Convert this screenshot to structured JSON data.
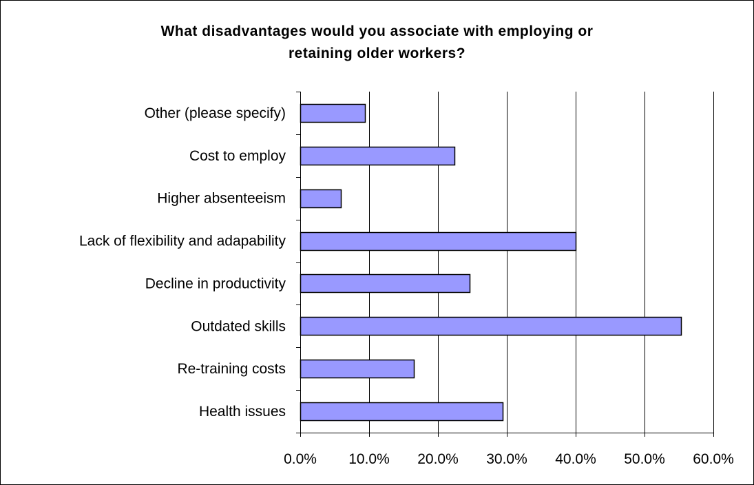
{
  "chart_data": {
    "type": "bar",
    "orientation": "horizontal",
    "title_lines": [
      "What disadvantages would you associate with employing or",
      "retaining older workers?"
    ],
    "categories": [
      "Other (please specify)",
      "Cost to employ",
      "Higher absenteeism",
      "Lack of flexibility and adapability",
      "Decline in productivity",
      "Outdated skills",
      "Re-training costs",
      "Health issues"
    ],
    "values": [
      9.4,
      22.4,
      5.9,
      40.0,
      24.6,
      55.3,
      16.5,
      29.4
    ],
    "xlim": [
      0,
      60
    ],
    "x_ticks": [
      {
        "value": 0,
        "label": "0.0%"
      },
      {
        "value": 10,
        "label": "10.0%"
      },
      {
        "value": 20,
        "label": "20.0%"
      },
      {
        "value": 30,
        "label": "30.0%"
      },
      {
        "value": 40,
        "label": "40.0%"
      },
      {
        "value": 50,
        "label": "50.0%"
      },
      {
        "value": 60,
        "label": "60.0%"
      }
    ],
    "grid": "vertical-major",
    "legend": "none",
    "colors": {
      "bar": "#9999ff",
      "bar_edge": "#000000",
      "grid": "#000000"
    }
  }
}
